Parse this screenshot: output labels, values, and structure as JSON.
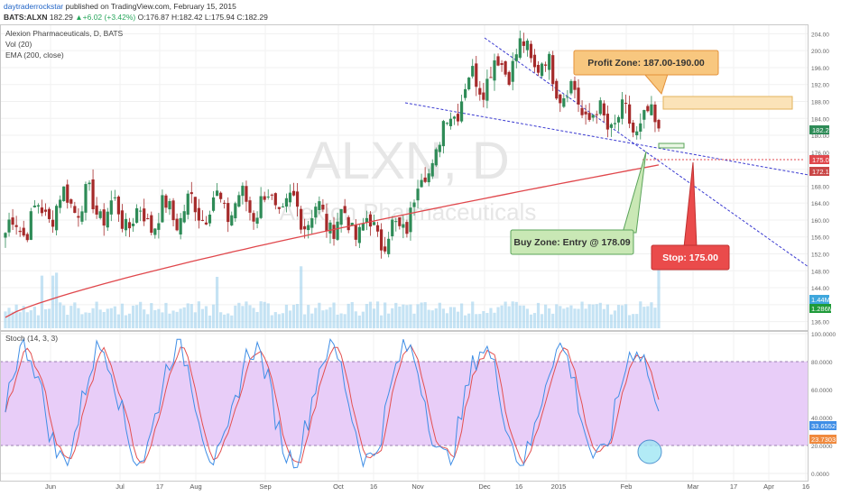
{
  "header": {
    "author": "daytraderrockstar",
    "published": "published on TradingView.com, February 15, 2015",
    "symbol": "BATS:ALXN",
    "last": "182.29",
    "change": "+6.02 (+3.42%)",
    "o_label": "O:",
    "o": "176.87",
    "h_label": "H:",
    "h": "182.42",
    "l_label": "L:",
    "l": "175.94",
    "c_label": "C:",
    "c": "182.29"
  },
  "legend": {
    "main_title": "Alexion Pharmaceuticals, D, BATS",
    "vol": "Vol (20)",
    "ema": "EMA (200, close)",
    "stoch": "Stoch (14, 3, 3)"
  },
  "watermark": {
    "symbol": "ALXN, D",
    "name": "Alexion Pharmaceuticals"
  },
  "annotations": {
    "profit_zone": "Profit Zone: 187.00-190.00",
    "buy_zone": "Buy Zone: Entry @ 178.09",
    "stop": "Stop: 175.00"
  },
  "colors": {
    "up": "#2e8b57",
    "down": "#a52a2a",
    "ema": "#e0474c",
    "channel": "#3a3ad1",
    "stoch_k": "#3f8ee6",
    "stoch_d": "#e35050",
    "stoch_band": "#e8cdf8",
    "profit_fill": "#fbe3b8",
    "profit_label": "#f8c77f",
    "buy_label": "#c9e8b5",
    "stop_label": "#ea4b4b",
    "volume": "#9fd0ec"
  },
  "chart_data": [
    {
      "type": "candlestick",
      "title": "Alexion Pharmaceuticals, D, BATS",
      "ylim": [
        134,
        206
      ],
      "price_axis_ticks": [
        "204.00",
        "200.00",
        "196.00",
        "192.00",
        "188.00",
        "184.00",
        "180.00",
        "176.00",
        "172.00",
        "168.00",
        "164.00",
        "160.00",
        "156.00",
        "152.00",
        "148.00",
        "144.00",
        "140.00",
        "136.00"
      ],
      "price_tags": [
        "182.29",
        "175.01",
        "172.18"
      ],
      "x_ticks": [
        "Jun",
        "Jul",
        "17",
        "Aug",
        "Sep",
        "Oct",
        "16",
        "Nov",
        "Dec",
        "16",
        "2015",
        "Feb",
        "Mar",
        "17",
        "Apr",
        "16"
      ],
      "price_path": [
        {
          "month": "May 2014",
          "close": 157
        },
        {
          "month": "Jun",
          "close": 165
        },
        {
          "month": "Jul",
          "close": 160
        },
        {
          "month": "Aug",
          "close": 163
        },
        {
          "month": "Sep",
          "close": 164
        },
        {
          "month": "Oct",
          "close": 160
        },
        {
          "month": "Oct-16",
          "close": 156
        },
        {
          "month": "Nov",
          "close": 191
        },
        {
          "month": "Dec",
          "close": 200
        },
        {
          "month": "Jan 2015",
          "close": 184
        },
        {
          "month": "Feb",
          "close": 182.29
        }
      ],
      "ema_200": {
        "start": 137,
        "end": 173
      },
      "channel_upper": {
        "start": 205,
        "end": 172
      },
      "channel_lower": {
        "start": 189,
        "end": 147
      },
      "profit_zone": [
        187,
        190
      ],
      "stop_level": 175.01,
      "volume_tags": [
        "1.44M",
        "1.286M"
      ]
    },
    {
      "type": "line",
      "title": "Stoch (14, 3, 3)",
      "ylim": [
        0,
        100
      ],
      "axis_ticks": [
        "100.0000",
        "80.0000",
        "60.0000",
        "40.0000",
        "20.0000",
        "0.0000"
      ],
      "bands": [
        20,
        80
      ],
      "value_tags": [
        "33.6552",
        "23.7303"
      ],
      "series": [
        {
          "name": "%K",
          "last": 33.6552
        },
        {
          "name": "%D",
          "last": 23.7303
        }
      ]
    }
  ]
}
